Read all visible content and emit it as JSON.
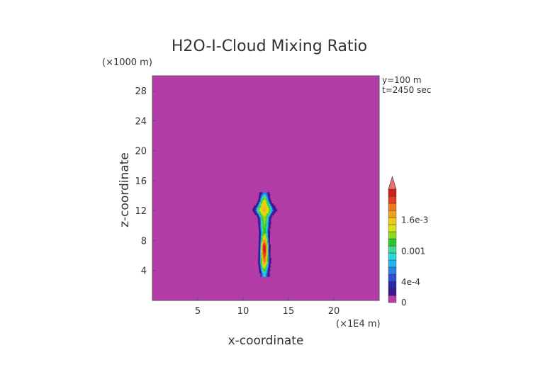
{
  "chart_data": {
    "type": "heatmap",
    "title": "H2O-I-Cloud Mixing Ratio",
    "xlabel": "x-coordinate",
    "ylabel": "z-coordinate",
    "x_unit": "(×1E4 m)",
    "y_unit": "(×1000 m)",
    "annotations": [
      "y=100 m",
      "t=2450 sec"
    ],
    "xlim": [
      0,
      25
    ],
    "ylim": [
      0,
      30
    ],
    "x_ticks": [
      5,
      10,
      15,
      20
    ],
    "y_ticks": [
      4,
      8,
      12,
      16,
      20,
      24,
      28
    ],
    "colorbar": {
      "range": [
        0,
        0.0022
      ],
      "labels": [
        {
          "value": 0,
          "text": "0"
        },
        {
          "value": 0.0004,
          "text": "4e-4"
        },
        {
          "value": 0.001,
          "text": "0.001"
        },
        {
          "value": 0.0016,
          "text": "1.6e-3"
        }
      ],
      "colors": [
        "#b43ca8",
        "#3a1a8c",
        "#2a2aa8",
        "#2f4fd0",
        "#2a82e8",
        "#20b4f0",
        "#28d8d8",
        "#40d890",
        "#28c828",
        "#8fd81c",
        "#d8e018",
        "#f0c818",
        "#f0a020",
        "#f07818",
        "#e04020",
        "#d02020"
      ],
      "extend_color": "#f07070"
    },
    "background_color": "#b43ca8",
    "plume": {
      "x_center": 12.3,
      "z_range": [
        3.2,
        14.4
      ],
      "profile": [
        {
          "z": 3.5,
          "half_width": 0.4,
          "max": 0.0007
        },
        {
          "z": 5.0,
          "half_width": 0.55,
          "max": 0.0017
        },
        {
          "z": 7.0,
          "half_width": 0.5,
          "max": 0.0022
        },
        {
          "z": 9.0,
          "half_width": 0.45,
          "max": 0.0011
        },
        {
          "z": 11.0,
          "half_width": 0.6,
          "max": 0.0012
        },
        {
          "z": 12.0,
          "half_width": 1.1,
          "max": 0.0016
        },
        {
          "z": 13.2,
          "half_width": 0.55,
          "max": 0.0014
        },
        {
          "z": 14.3,
          "half_width": 0.4,
          "max": 0.0004
        }
      ]
    }
  }
}
